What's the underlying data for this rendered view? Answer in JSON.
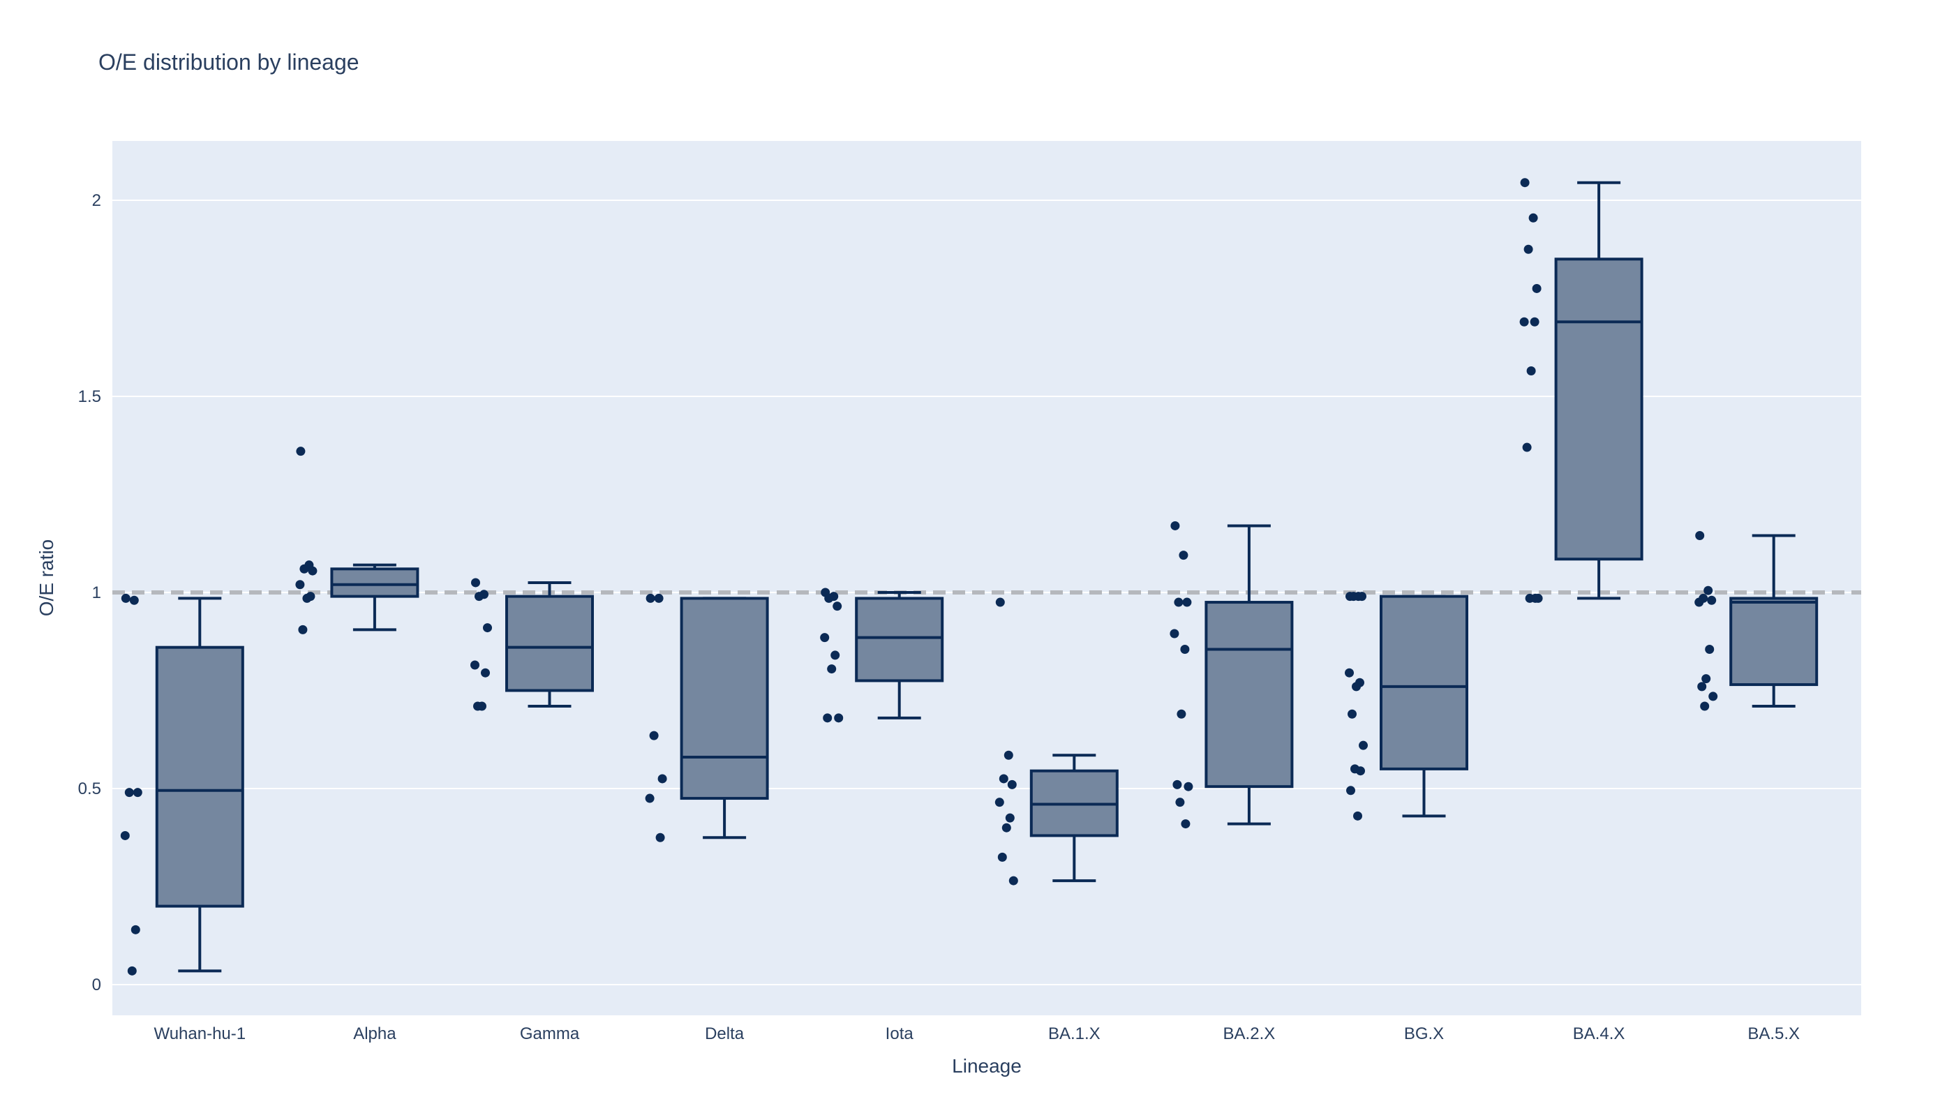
{
  "chart_data": {
    "type": "box",
    "title": "O/E distribution by lineage",
    "xlabel": "Lineage",
    "ylabel": "O/E ratio",
    "ylim": [
      -0.08,
      2.15
    ],
    "yticks": [
      0,
      0.5,
      1,
      1.5,
      2
    ],
    "ytick_labels": [
      "0",
      "0.5",
      "1",
      "1.5",
      "2"
    ],
    "reference_line": {
      "y": 1,
      "style": "dashed",
      "color": "#b5b8bd"
    },
    "grid": true,
    "legend": "none",
    "colors": {
      "plot_bg": "#e5ecf6",
      "grid": "#ffffff",
      "box_fill": "#75879f",
      "box_line": "#0b2a55",
      "point": "#0b2a55",
      "text": "#2a3f5f"
    },
    "categories": [
      "Wuhan-hu-1",
      "Alpha",
      "Gamma",
      "Delta",
      "Iota",
      "BA.1.X",
      "BA.2.X",
      "BG.X",
      "BA.4.X",
      "BA.5.X"
    ],
    "boxes": [
      {
        "category": "Wuhan-hu-1",
        "min": 0.035,
        "q1": 0.2,
        "median": 0.495,
        "q3": 0.86,
        "max": 0.985,
        "points": [
          0.985,
          0.98,
          0.49,
          0.49,
          0.38,
          0.14,
          0.035
        ]
      },
      {
        "category": "Alpha",
        "min": 0.905,
        "q1": 0.99,
        "median": 1.02,
        "q3": 1.06,
        "max": 1.07,
        "points": [
          1.36,
          1.07,
          1.06,
          1.055,
          1.02,
          0.99,
          0.985,
          0.905
        ]
      },
      {
        "category": "Gamma",
        "min": 0.71,
        "q1": 0.75,
        "median": 0.86,
        "q3": 0.99,
        "max": 1.025,
        "points": [
          1.025,
          0.995,
          0.99,
          0.91,
          0.815,
          0.795,
          0.71,
          0.71
        ]
      },
      {
        "category": "Delta",
        "min": 0.375,
        "q1": 0.475,
        "median": 0.58,
        "q3": 0.985,
        "max": 0.985,
        "points": [
          0.985,
          0.985,
          0.635,
          0.525,
          0.475,
          0.375
        ]
      },
      {
        "category": "Iota",
        "min": 0.68,
        "q1": 0.775,
        "median": 0.885,
        "q3": 0.985,
        "max": 1.0,
        "points": [
          1.0,
          0.99,
          0.985,
          0.965,
          0.885,
          0.84,
          0.805,
          0.68,
          0.68
        ]
      },
      {
        "category": "BA.1.X",
        "min": 0.265,
        "q1": 0.38,
        "median": 0.46,
        "q3": 0.545,
        "max": 0.585,
        "points": [
          0.975,
          0.585,
          0.525,
          0.51,
          0.465,
          0.425,
          0.4,
          0.325,
          0.265
        ]
      },
      {
        "category": "BA.2.X",
        "min": 0.41,
        "q1": 0.505,
        "median": 0.855,
        "q3": 0.975,
        "max": 1.17,
        "points": [
          1.17,
          1.095,
          0.975,
          0.975,
          0.895,
          0.855,
          0.69,
          0.51,
          0.505,
          0.465,
          0.41
        ]
      },
      {
        "category": "BG.X",
        "min": 0.43,
        "q1": 0.55,
        "median": 0.76,
        "q3": 0.99,
        "max": 0.99,
        "points": [
          0.99,
          0.99,
          0.99,
          0.99,
          0.795,
          0.77,
          0.76,
          0.69,
          0.61,
          0.55,
          0.545,
          0.495,
          0.43
        ]
      },
      {
        "category": "BA.4.X",
        "min": 0.985,
        "q1": 1.085,
        "median": 1.69,
        "q3": 1.85,
        "max": 2.045,
        "points": [
          2.045,
          1.955,
          1.875,
          1.775,
          1.69,
          1.69,
          1.565,
          1.37,
          0.985,
          0.985,
          0.985
        ]
      },
      {
        "category": "BA.5.X",
        "min": 0.71,
        "q1": 0.765,
        "median": 0.975,
        "q3": 0.985,
        "max": 1.145,
        "points": [
          1.145,
          1.005,
          0.985,
          0.98,
          0.975,
          0.855,
          0.78,
          0.76,
          0.735,
          0.71
        ]
      }
    ]
  }
}
